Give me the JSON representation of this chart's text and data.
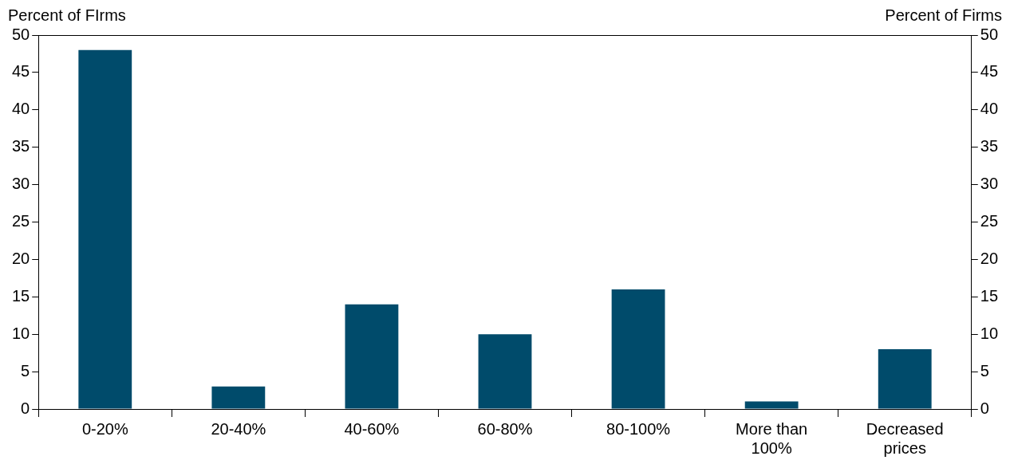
{
  "chart_data": {
    "type": "bar",
    "ylabel": "Percent of FIrms",
    "y2label": "Percent of Firms",
    "categories": [
      "0-20%",
      "20-40%",
      "40-60%",
      "60-80%",
      "80-100%",
      "More than 100%",
      "Decreased prices"
    ],
    "values": [
      48,
      3,
      14,
      10,
      16,
      1,
      8
    ],
    "color": "#004b6b",
    "ylim": [
      0,
      50
    ],
    "yticks": [
      0,
      5,
      10,
      15,
      20,
      25,
      30,
      35,
      40,
      45,
      50
    ],
    "y2lim": [
      0,
      50
    ],
    "y2ticks": [
      0,
      5,
      10,
      15,
      20,
      25,
      30,
      35,
      40,
      45,
      50
    ],
    "grid": false,
    "legend": false
  }
}
